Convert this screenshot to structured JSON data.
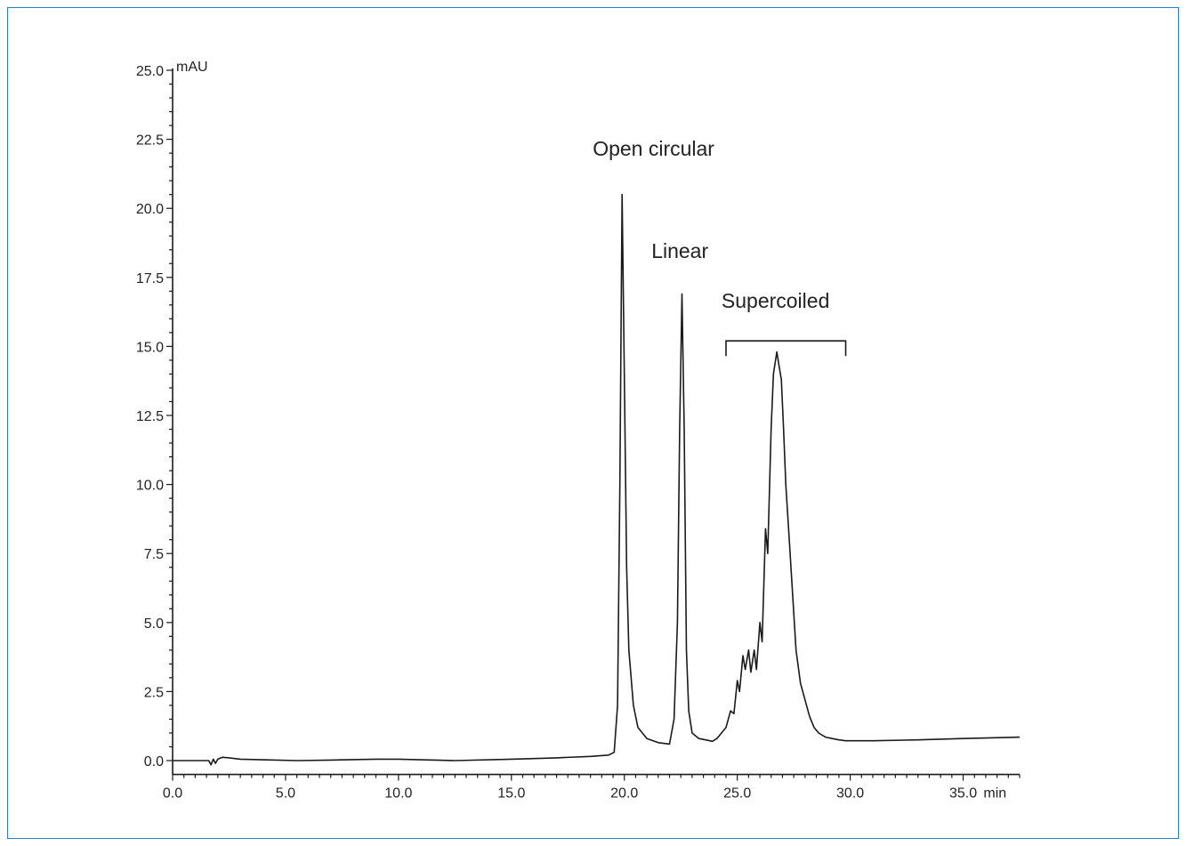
{
  "chart_data": {
    "type": "line",
    "title": "",
    "xlabel": "",
    "ylabel": "",
    "x_unit": "min",
    "y_unit": "mAU",
    "xlim": [
      0,
      37.5
    ],
    "ylim": [
      -0.5,
      25
    ],
    "x_ticks": [
      "0.0",
      "5.0",
      "10.0",
      "15.0",
      "20.0",
      "25.0",
      "30.0",
      "35.0"
    ],
    "y_ticks": [
      "0.0",
      "2.5",
      "5.0",
      "7.5",
      "10.0",
      "12.5",
      "15.0",
      "17.5",
      "20.0",
      "22.5",
      "25.0"
    ],
    "grid": false,
    "legend": "none",
    "line_color": "#1a1a1a",
    "annotations": [
      {
        "text": "Open circular",
        "x": 18.6,
        "y": 21.9
      },
      {
        "text": "Linear",
        "x": 21.2,
        "y": 18.2
      },
      {
        "text": "Supercoiled",
        "x": 24.3,
        "y": 16.4
      }
    ],
    "bracket": {
      "x_start": 24.5,
      "x_end": 29.8,
      "y": 15.2,
      "y_drop": 0.55
    },
    "series": [
      {
        "name": "",
        "x": [
          0.0,
          1.0,
          1.6,
          1.7,
          1.8,
          1.9,
          2.0,
          2.2,
          2.5,
          3.0,
          4.0,
          5.5,
          7.0,
          9.0,
          10.0,
          12.5,
          15.0,
          17.0,
          18.5,
          19.3,
          19.55,
          19.7,
          19.8,
          19.9,
          20.0,
          20.1,
          20.2,
          20.4,
          20.6,
          21.0,
          21.5,
          22.0,
          22.2,
          22.35,
          22.45,
          22.55,
          22.65,
          22.75,
          22.85,
          23.0,
          23.3,
          23.6,
          23.9,
          24.1,
          24.3,
          24.5,
          24.7,
          24.85,
          25.0,
          25.1,
          25.25,
          25.35,
          25.5,
          25.6,
          25.75,
          25.85,
          26.0,
          26.1,
          26.25,
          26.35,
          26.5,
          26.6,
          26.75,
          26.85,
          26.95,
          27.05,
          27.15,
          27.3,
          27.45,
          27.6,
          27.8,
          28.0,
          28.2,
          28.4,
          28.6,
          28.9,
          29.2,
          29.5,
          29.8,
          30.2,
          31.0,
          33.0,
          35.0,
          37.5
        ],
        "y": [
          0.0,
          0.0,
          0.0,
          -0.15,
          0.05,
          -0.1,
          0.05,
          0.12,
          0.1,
          0.05,
          0.03,
          0.0,
          0.02,
          0.05,
          0.05,
          0.0,
          0.05,
          0.1,
          0.15,
          0.2,
          0.3,
          2.0,
          10.0,
          20.5,
          14.0,
          7.0,
          4.0,
          2.0,
          1.2,
          0.8,
          0.65,
          0.6,
          1.5,
          5.0,
          12.0,
          16.9,
          12.0,
          4.0,
          1.8,
          1.0,
          0.8,
          0.75,
          0.7,
          0.8,
          1.0,
          1.2,
          1.8,
          1.7,
          2.9,
          2.5,
          3.8,
          3.3,
          4.0,
          3.2,
          4.0,
          3.3,
          5.0,
          4.3,
          8.4,
          7.5,
          12.0,
          14.0,
          14.8,
          14.3,
          13.8,
          12.0,
          10.0,
          8.0,
          6.0,
          4.0,
          2.8,
          2.2,
          1.6,
          1.2,
          1.0,
          0.85,
          0.8,
          0.75,
          0.72,
          0.72,
          0.72,
          0.75,
          0.8,
          0.85
        ]
      }
    ]
  }
}
